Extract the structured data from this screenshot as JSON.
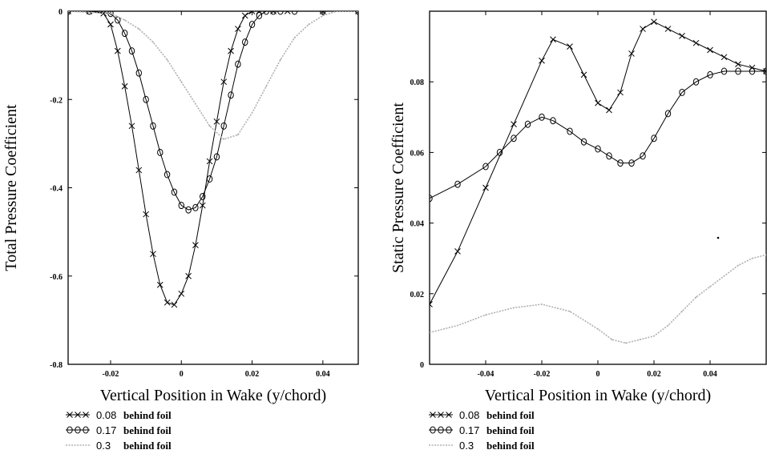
{
  "chart_data": [
    {
      "type": "line",
      "xlabel": "Vertical Position in Wake (y/chord)",
      "ylabel": "Total Pressure Coefficient",
      "xlim": [
        -0.032,
        0.05
      ],
      "ylim": [
        -0.8,
        0
      ],
      "xticks": [
        -0.02,
        0,
        0.02,
        0.04
      ],
      "xtick_labels": [
        "-0.02",
        "0",
        "0.02",
        "0.04"
      ],
      "yticks": [
        0,
        -0.2,
        -0.4,
        -0.6,
        -0.8
      ],
      "ytick_labels": [
        "0",
        "-0.2",
        "-0.4",
        "-0.6",
        "-0.8"
      ],
      "legend_position": "below-left",
      "series": [
        {
          "name": "behind foil",
          "legend_value": "0.08",
          "marker": "x",
          "color": "#000000",
          "x": [
            -0.032,
            -0.026,
            -0.022,
            -0.02,
            -0.018,
            -0.016,
            -0.014,
            -0.012,
            -0.01,
            -0.008,
            -0.006,
            -0.004,
            -0.002,
            0,
            0.002,
            0.004,
            0.006,
            0.008,
            0.01,
            0.012,
            0.014,
            0.016,
            0.018,
            0.02,
            0.022,
            0.026,
            0.03,
            0.04,
            0.05
          ],
          "y": [
            0,
            0,
            -0.005,
            -0.03,
            -0.09,
            -0.17,
            -0.26,
            -0.36,
            -0.46,
            -0.55,
            -0.62,
            -0.66,
            -0.665,
            -0.64,
            -0.6,
            -0.53,
            -0.44,
            -0.34,
            -0.25,
            -0.16,
            -0.09,
            -0.04,
            -0.01,
            0,
            0,
            0,
            0,
            0,
            0
          ]
        },
        {
          "name": "behind foil",
          "legend_value": "0.17",
          "marker": "o",
          "color": "#000000",
          "x": [
            -0.032,
            -0.026,
            -0.02,
            -0.018,
            -0.016,
            -0.014,
            -0.012,
            -0.01,
            -0.008,
            -0.006,
            -0.004,
            -0.002,
            0,
            0.002,
            0.004,
            0.006,
            0.008,
            0.01,
            0.012,
            0.014,
            0.016,
            0.018,
            0.02,
            0.022,
            0.024,
            0.026,
            0.028,
            0.032,
            0.04,
            0.05
          ],
          "y": [
            0,
            0,
            -0.005,
            -0.02,
            -0.05,
            -0.09,
            -0.14,
            -0.2,
            -0.26,
            -0.32,
            -0.37,
            -0.41,
            -0.44,
            -0.45,
            -0.445,
            -0.42,
            -0.38,
            -0.33,
            -0.26,
            -0.19,
            -0.12,
            -0.07,
            -0.03,
            -0.01,
            0,
            0,
            0,
            0,
            0,
            0
          ]
        },
        {
          "name": "behind foil",
          "legend_value": "0.3",
          "marker": "none",
          "color": "#b0b0b0",
          "x": [
            -0.032,
            -0.02,
            -0.016,
            -0.012,
            -0.008,
            -0.004,
            0,
            0.004,
            0.008,
            0.012,
            0.016,
            0.02,
            0.024,
            0.028,
            0.032,
            0.036,
            0.04,
            0.044,
            0.048,
            0.05
          ],
          "y": [
            0,
            -0.005,
            -0.02,
            -0.04,
            -0.07,
            -0.11,
            -0.16,
            -0.21,
            -0.26,
            -0.29,
            -0.28,
            -0.23,
            -0.17,
            -0.11,
            -0.06,
            -0.03,
            -0.01,
            0,
            0,
            0
          ]
        }
      ],
      "legend": [
        {
          "value": "0.08",
          "label": "behind foil"
        },
        {
          "value": "0.17",
          "label": "behind foil"
        },
        {
          "value": "0.3",
          "label": "behind foil"
        }
      ]
    },
    {
      "type": "line",
      "xlabel": "Vertical Position in Wake (y/chord)",
      "ylabel": "Static Pressure Coefficient",
      "xlim": [
        -0.06,
        0.06
      ],
      "ylim": [
        0,
        0.1
      ],
      "xticks": [
        -0.04,
        -0.02,
        0,
        0.02,
        0.04
      ],
      "xtick_labels": [
        "-0.04",
        "-0.02",
        "0",
        "0.02",
        "0.04"
      ],
      "yticks": [
        0,
        0.02,
        0.04,
        0.06,
        0.08
      ],
      "ytick_labels": [
        "0",
        "0.02",
        "0.04",
        "0.06",
        "0.08"
      ],
      "legend_position": "below-left",
      "series": [
        {
          "name": "behind foil",
          "legend_value": "0.08",
          "marker": "x",
          "color": "#000000",
          "x": [
            -0.06,
            -0.05,
            -0.04,
            -0.03,
            -0.02,
            -0.016,
            -0.01,
            -0.005,
            0,
            0.004,
            0.008,
            0.012,
            0.016,
            0.02,
            0.025,
            0.03,
            0.035,
            0.04,
            0.045,
            0.05,
            0.055,
            0.06
          ],
          "y": [
            0.017,
            0.032,
            0.05,
            0.068,
            0.086,
            0.092,
            0.09,
            0.082,
            0.074,
            0.072,
            0.077,
            0.088,
            0.095,
            0.097,
            0.095,
            0.093,
            0.091,
            0.089,
            0.087,
            0.085,
            0.084,
            0.083
          ]
        },
        {
          "name": "behind foil",
          "legend_value": "0.17",
          "marker": "o",
          "color": "#000000",
          "x": [
            -0.06,
            -0.05,
            -0.04,
            -0.035,
            -0.03,
            -0.025,
            -0.02,
            -0.016,
            -0.01,
            -0.005,
            0,
            0.004,
            0.008,
            0.012,
            0.016,
            0.02,
            0.025,
            0.03,
            0.035,
            0.04,
            0.045,
            0.05,
            0.055,
            0.06
          ],
          "y": [
            0.047,
            0.051,
            0.056,
            0.06,
            0.064,
            0.068,
            0.07,
            0.069,
            0.066,
            0.063,
            0.061,
            0.059,
            0.057,
            0.057,
            0.059,
            0.064,
            0.071,
            0.077,
            0.08,
            0.082,
            0.083,
            0.083,
            0.083,
            0.083
          ]
        },
        {
          "name": "behind foil",
          "legend_value": "0.3",
          "marker": "none",
          "color": "#b0b0b0",
          "x": [
            -0.06,
            -0.05,
            -0.04,
            -0.03,
            -0.02,
            -0.01,
            0,
            0.005,
            0.01,
            0.015,
            0.02,
            0.025,
            0.03,
            0.035,
            0.04,
            0.045,
            0.05,
            0.055,
            0.06
          ],
          "y": [
            0.009,
            0.011,
            0.014,
            0.016,
            0.017,
            0.015,
            0.01,
            0.007,
            0.006,
            0.007,
            0.008,
            0.011,
            0.015,
            0.019,
            0.022,
            0.025,
            0.028,
            0.03,
            0.031
          ]
        }
      ],
      "legend": [
        {
          "value": "0.08",
          "label": "behind foil"
        },
        {
          "value": "0.17",
          "label": "behind foil"
        },
        {
          "value": "0.3",
          "label": "behind foil"
        }
      ]
    }
  ]
}
